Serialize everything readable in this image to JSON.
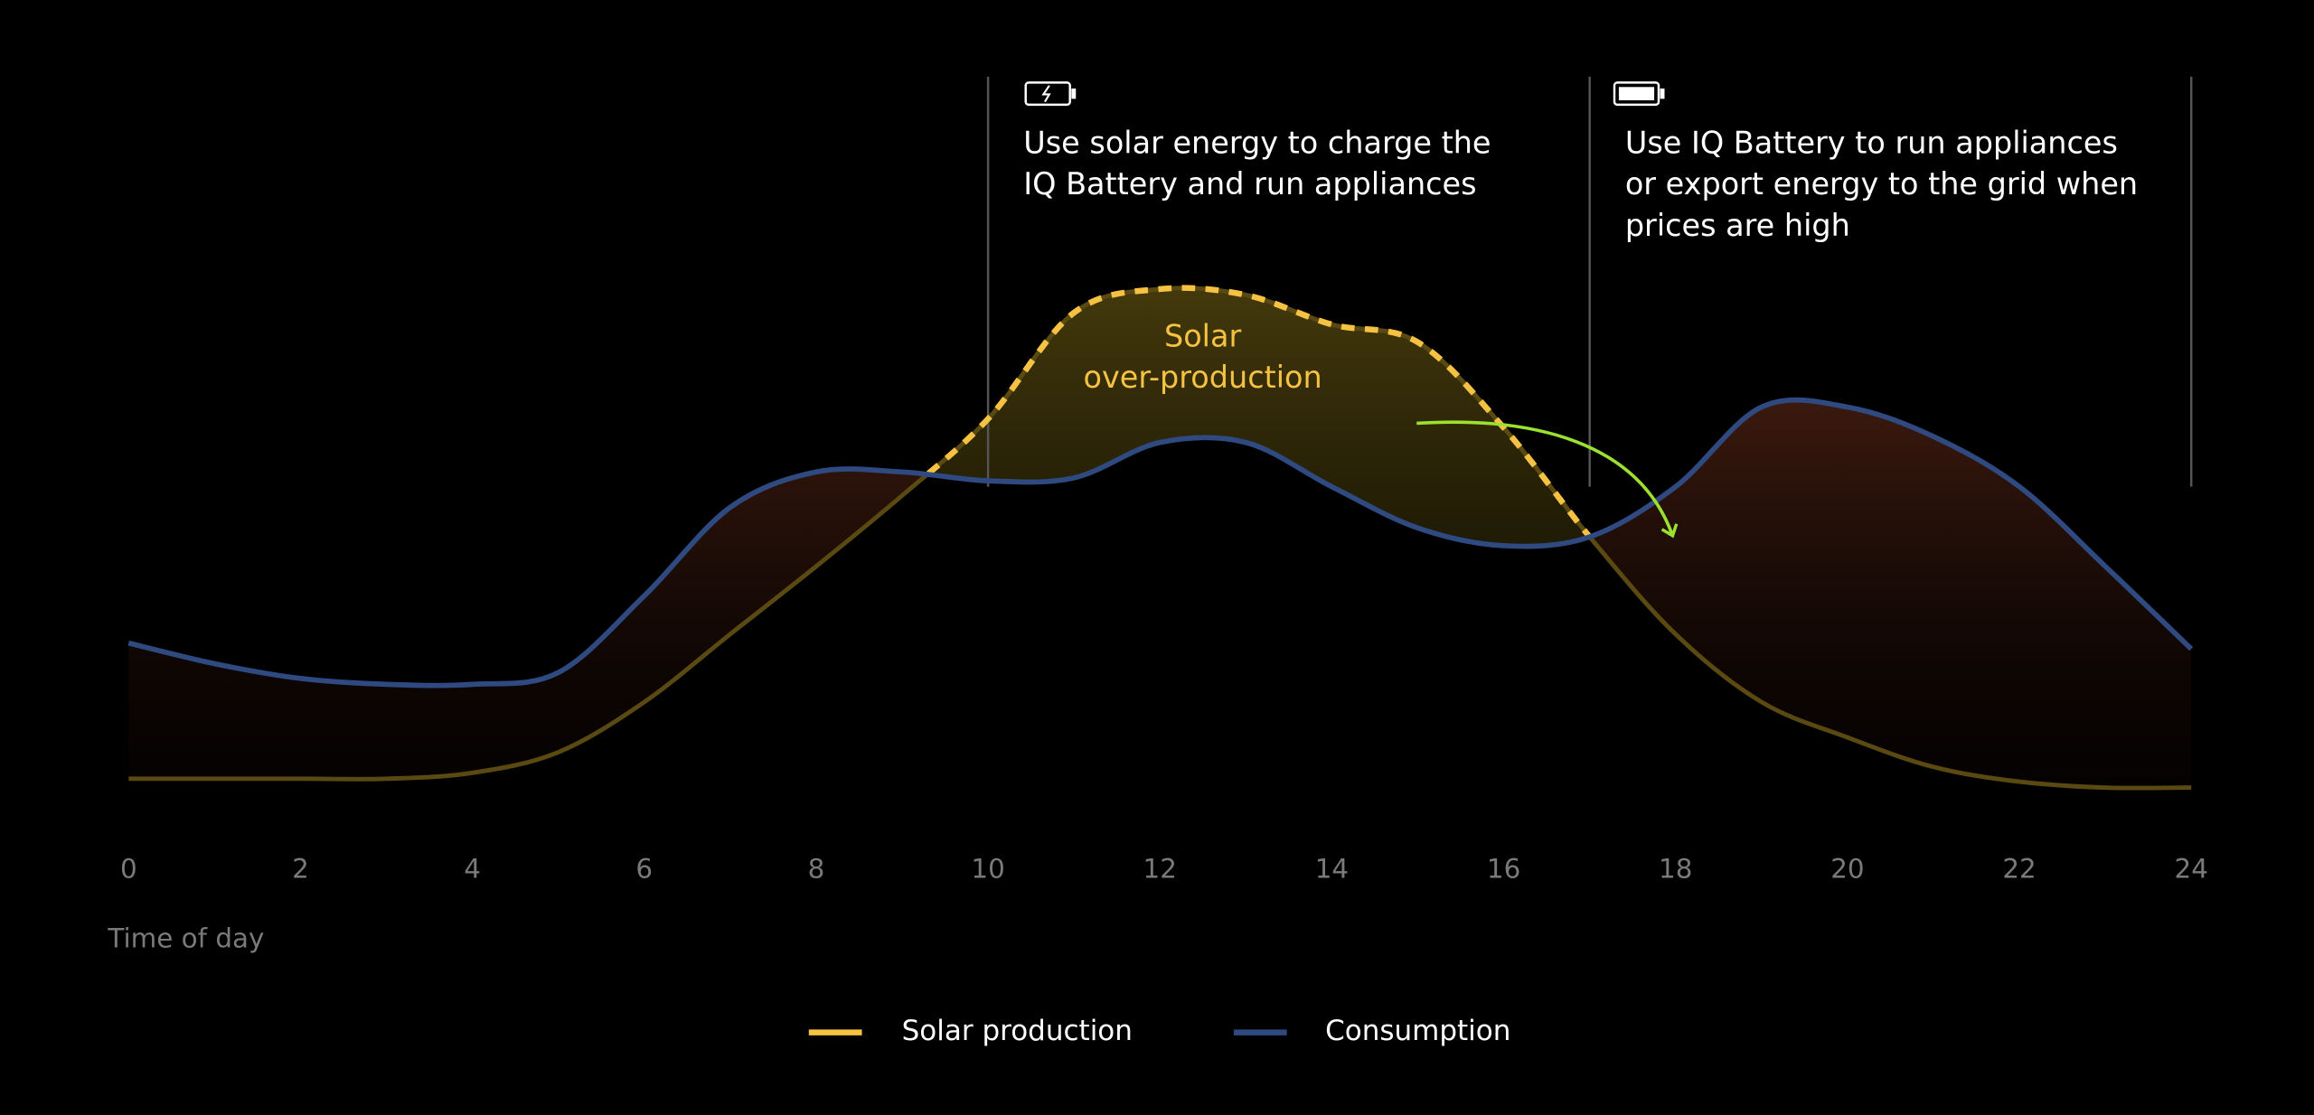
{
  "chart_data": {
    "type": "line",
    "x": [
      0,
      1,
      2,
      3,
      4,
      5,
      6,
      7,
      8,
      9,
      10,
      11,
      12,
      13,
      14,
      15,
      16,
      17,
      18,
      19,
      20,
      21,
      22,
      23,
      24
    ],
    "xticks": [
      0,
      2,
      4,
      6,
      8,
      10,
      12,
      14,
      16,
      18,
      20,
      22,
      24
    ],
    "xlim": [
      0,
      24
    ],
    "ylim": [
      0,
      100
    ],
    "xlabel": "Time of day",
    "series": [
      {
        "name": "Solar production",
        "color": "#f5c242",
        "values": [
          3,
          3,
          3,
          3,
          4,
          7.5,
          16,
          27.5,
          39,
          51,
          64,
          82,
          86,
          85,
          80,
          77,
          62.5,
          44,
          27.5,
          16,
          10,
          5,
          2.5,
          1.5,
          1.5
        ]
      },
      {
        "name": "Consumption",
        "color": "#2f4a80",
        "values": [
          26,
          22.5,
          20,
          19,
          19,
          21,
          34,
          49,
          55,
          55,
          53.5,
          54,
          60,
          60,
          52.5,
          45.5,
          42.5,
          44,
          52.5,
          66,
          66,
          61,
          52.5,
          39,
          25
        ]
      }
    ],
    "dividers": [
      10,
      17,
      24
    ],
    "annotations": [
      {
        "x": 10,
        "lines": [
          "Use solar energy to charge the",
          "IQ Battery and run appliances"
        ]
      },
      {
        "x": 17,
        "lines": [
          "Use IQ Battery to run appliances",
          "or export energy to the grid when",
          "prices are high"
        ]
      }
    ],
    "area_label": [
      "Solar",
      "over-production"
    ]
  }
}
